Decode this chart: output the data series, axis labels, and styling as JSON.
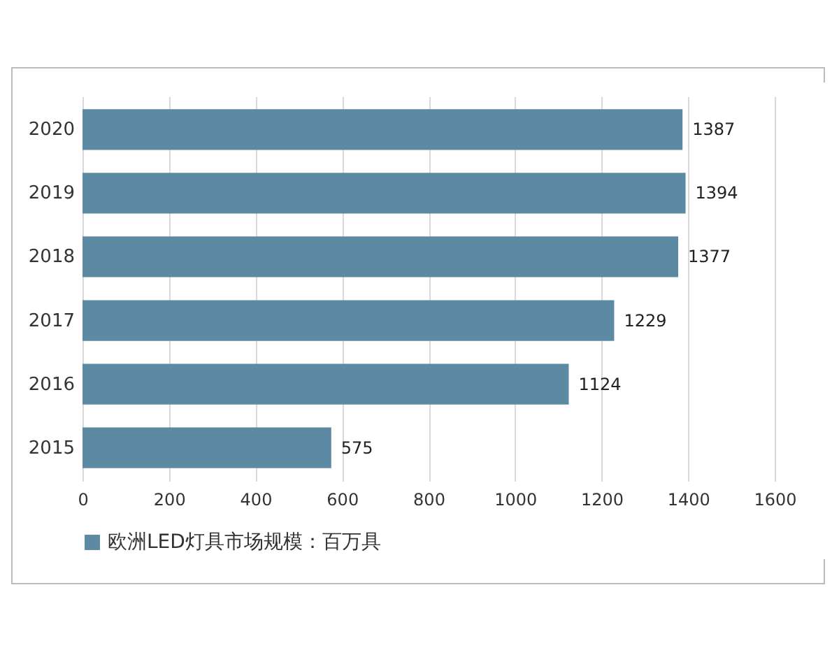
{
  "chart_data": {
    "type": "bar",
    "orientation": "horizontal",
    "categories": [
      "2020",
      "2019",
      "2018",
      "2017",
      "2016",
      "2015"
    ],
    "series": [
      {
        "name": "欧洲LED灯具市场规模：百万具",
        "color": "#5b8aa2",
        "values": [
          1387,
          1394,
          1377,
          1229,
          1124,
          575
        ]
      }
    ],
    "xlim": [
      0,
      1600
    ],
    "xticks": [
      0,
      200,
      400,
      600,
      800,
      1000,
      1200,
      1400,
      1600
    ],
    "grid": "x",
    "legend": "bottom",
    "data_labels": true
  }
}
